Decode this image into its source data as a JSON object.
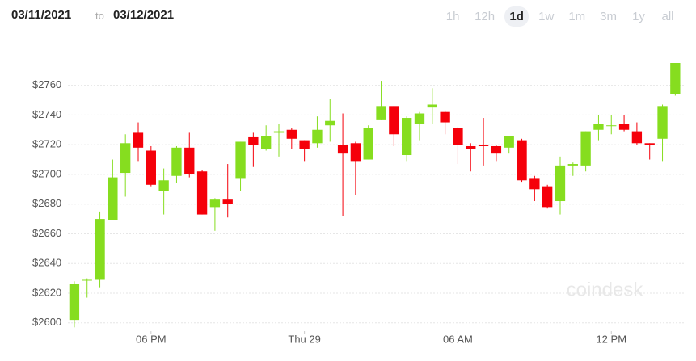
{
  "header": {
    "from": "03/11/2021",
    "to_word": "to",
    "to": "03/12/2021",
    "ranges": [
      "1h",
      "12h",
      "1d",
      "1w",
      "1m",
      "3m",
      "1y",
      "all"
    ],
    "active_range": "1d"
  },
  "watermark": "coindesk",
  "chart_data": {
    "type": "candlestick",
    "up_color": "#86dd1f",
    "down_color": "#f5000a",
    "grid": true,
    "xlim": [
      14.75,
      38.9
    ],
    "xticks": [
      {
        "value": 18,
        "label": "06 PM"
      },
      {
        "value": 24,
        "label": "Thu 29"
      },
      {
        "value": 30,
        "label": "06 AM"
      },
      {
        "value": 36,
        "label": "12 PM"
      }
    ],
    "ylim": [
      2595,
      2775
    ],
    "yticks": [
      {
        "value": 2600,
        "label": "$2600"
      },
      {
        "value": 2620,
        "label": "$2620"
      },
      {
        "value": 2640,
        "label": "$2640"
      },
      {
        "value": 2660,
        "label": "$2660"
      },
      {
        "value": 2680,
        "label": "$2680"
      },
      {
        "value": 2700,
        "label": "$2700"
      },
      {
        "value": 2720,
        "label": "$2720"
      },
      {
        "value": 2740,
        "label": "$2740"
      },
      {
        "value": 2760,
        "label": "$2760"
      }
    ],
    "x": [
      15,
      15.5,
      16,
      16.5,
      17,
      17.5,
      18,
      18.5,
      19,
      19.5,
      20,
      20.5,
      21,
      21.5,
      22,
      22.5,
      23,
      23.5,
      24,
      24.5,
      25,
      25.5,
      26,
      26.5,
      27,
      27.5,
      28,
      28.5,
      29,
      29.5,
      30,
      30.5,
      31,
      31.5,
      32,
      32.5,
      33,
      33.5,
      34,
      34.5,
      35,
      35.5,
      36,
      36.5,
      37,
      37.5,
      38,
      38.5
    ],
    "open": [
      2602,
      2629,
      2629,
      2669,
      2701,
      2728,
      2716,
      2689,
      2699,
      2718,
      2702,
      2678,
      2683,
      2697,
      2725,
      2717,
      2728,
      2730,
      2723,
      2721,
      2733,
      2720,
      2721,
      2710,
      2737,
      2746,
      2713,
      2734,
      2745,
      2742,
      2731,
      2719,
      2720,
      2719,
      2718,
      2723,
      2697,
      2692,
      2682,
      2706,
      2706,
      2730,
      2733,
      2734,
      2729,
      2721,
      2724,
      2754
    ],
    "high": [
      2628,
      2630,
      2675,
      2710,
      2727,
      2735,
      2719,
      2704,
      2719,
      2728,
      2703,
      2684,
      2707,
      2722,
      2728,
      2733,
      2734,
      2731,
      2723,
      2739,
      2751,
      2741,
      2722,
      2733,
      2763,
      2746,
      2739,
      2742,
      2758,
      2743,
      2732,
      2721,
      2738,
      2720,
      2726,
      2724,
      2699,
      2693,
      2712,
      2708,
      2729,
      2740,
      2740,
      2740,
      2735,
      2721,
      2747,
      2775
    ],
    "low": [
      2597,
      2617,
      2624,
      2669,
      2685,
      2709,
      2692,
      2673,
      2694,
      2698,
      2673,
      2662,
      2671,
      2689,
      2705,
      2716,
      2712,
      2717,
      2709,
      2718,
      2722,
      2672,
      2686,
      2710,
      2737,
      2719,
      2709,
      2723,
      2734,
      2727,
      2707,
      2702,
      2706,
      2709,
      2714,
      2695,
      2682,
      2677,
      2673,
      2699,
      2702,
      2723,
      2727,
      2729,
      2720,
      2710,
      2709,
      2753
    ],
    "close": [
      2626,
      2629,
      2670,
      2698,
      2721,
      2718,
      2693,
      2696,
      2718,
      2700,
      2673,
      2683,
      2680,
      2722,
      2720,
      2726,
      2729,
      2724,
      2717,
      2730,
      2736,
      2714,
      2709,
      2731,
      2746,
      2727,
      2738,
      2741,
      2747,
      2735,
      2720,
      2717,
      2719,
      2714,
      2726,
      2696,
      2690,
      2678,
      2706,
      2707,
      2729,
      2734,
      2733,
      2730,
      2721,
      2720,
      2746,
      2775
    ]
  }
}
